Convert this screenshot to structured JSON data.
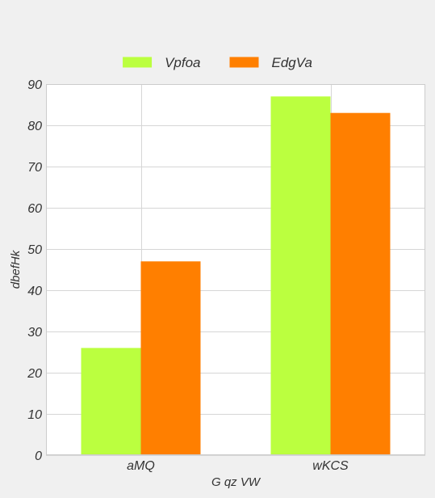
{
  "chart_data": {
    "type": "bar",
    "title": "",
    "xlabel": "G qz VW",
    "ylabel": "dbefHk",
    "categories": [
      "aMQ",
      "wKCS"
    ],
    "series": [
      {
        "name": "Vpfoa",
        "color": "#bbff3f",
        "values": [
          26,
          87
        ]
      },
      {
        "name": "EdgVa",
        "color": "#ff7f00",
        "values": [
          47,
          83
        ]
      }
    ],
    "ylim": [
      0,
      90
    ],
    "yticks": [
      0,
      10,
      20,
      30,
      40,
      50,
      60,
      70,
      80,
      90
    ],
    "grid": true,
    "legend_position": "top-center"
  }
}
